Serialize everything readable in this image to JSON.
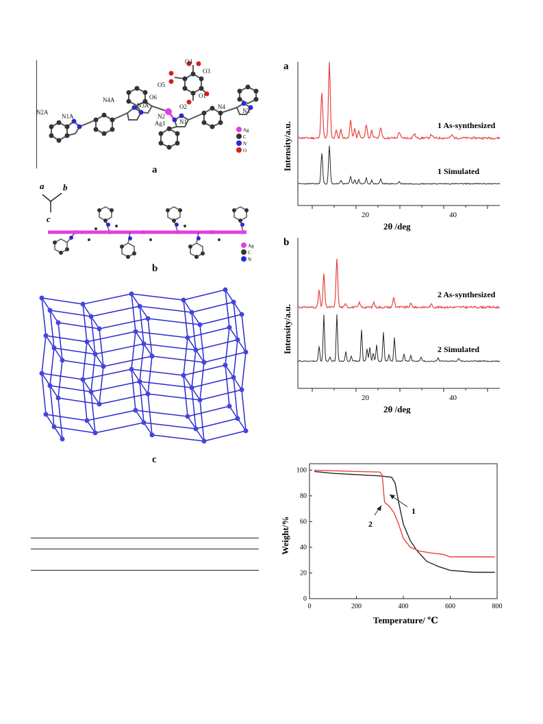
{
  "figure_left": {
    "panel_a": {
      "label": "a",
      "atoms": {
        "o4": "O4",
        "o3": "O3",
        "o5": "O5",
        "o1": "O1",
        "o6": "O6",
        "o2": "O2",
        "n4a": "N4A",
        "n3a": "N3A",
        "n2a": "N2A",
        "n1a": "N1A",
        "ag1": "Ag1",
        "n2": "N2",
        "n1": "N1",
        "n4": "N4",
        "n3": "N3"
      },
      "legend": [
        "Ag",
        "C",
        "N",
        "O"
      ]
    },
    "panel_b": {
      "label": "b",
      "axes": [
        "a",
        "b",
        "c"
      ],
      "legend": [
        "Ag",
        "C",
        "N"
      ]
    },
    "panel_c": {
      "label": "c"
    }
  },
  "xrd_a": {
    "panel_label": "a",
    "ylabel": "Intensity/a.u.",
    "xlabel": "2θ /deg",
    "xticks": [
      "20",
      "40"
    ],
    "trace1_label": "1 As-synthesized",
    "trace2_label": "1 Simulated"
  },
  "xrd_b": {
    "panel_label": "b",
    "ylabel": "Intensity/a.u.",
    "xlabel": "2θ /deg",
    "xticks": [
      "20",
      "40"
    ],
    "trace1_label": "2 As-synthesized",
    "trace2_label": "2 Simulated"
  },
  "colors": {
    "red": "#e8413c",
    "black": "#222222",
    "blue": "#2a2ad0",
    "magenta": "#e040e0"
  },
  "chart_data": {
    "type": "line",
    "xlabel": "Temperature/ ℃",
    "ylabel": "Weight/%",
    "xlim": [
      0,
      800
    ],
    "ylim": [
      0,
      105
    ],
    "xticks": [
      0,
      200,
      400,
      600,
      800
    ],
    "yticks": [
      0,
      20,
      40,
      60,
      80,
      100
    ],
    "series": [
      {
        "name": "1",
        "color": "#222222",
        "x": [
          20,
          100,
          200,
          300,
          350,
          365,
          380,
          400,
          430,
          460,
          500,
          550,
          600,
          700,
          790
        ],
        "y": [
          99,
          97.5,
          96.5,
          95.5,
          94.5,
          90,
          75,
          58,
          45,
          37,
          29,
          25,
          22,
          20.5,
          20.5
        ]
      },
      {
        "name": "2",
        "color": "#e8413c",
        "x": [
          20,
          100,
          200,
          300,
          310,
          320,
          340,
          360,
          380,
          400,
          430,
          470,
          520,
          570,
          600,
          700,
          790
        ],
        "y": [
          100,
          99.5,
          99,
          98.5,
          96,
          75,
          72,
          67,
          58,
          47,
          40,
          37,
          35.5,
          34.5,
          32.5,
          32.5,
          32.5
        ]
      }
    ],
    "annotations": [
      "1",
      "2"
    ]
  }
}
